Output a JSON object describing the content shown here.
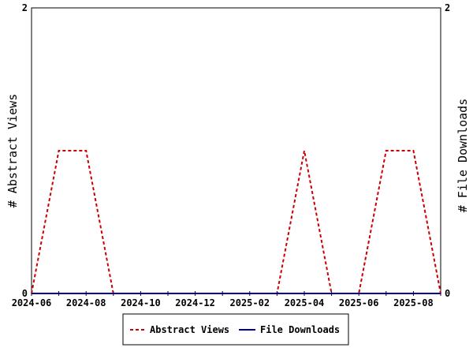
{
  "chart_data": {
    "type": "line",
    "x": [
      "2024-06",
      "2024-07",
      "2024-08",
      "2024-09",
      "2024-10",
      "2024-11",
      "2024-12",
      "2025-01",
      "2025-02",
      "2025-03",
      "2025-04",
      "2025-05",
      "2025-06",
      "2025-07",
      "2025-08",
      "2025-09"
    ],
    "x_tick_labels": [
      "2024-06",
      "2024-08",
      "2024-10",
      "2024-12",
      "2025-02",
      "2025-04",
      "2025-06",
      "2025-08"
    ],
    "series": [
      {
        "name": "Abstract Views",
        "axis": "left",
        "color": "#cc0000",
        "style": "dashed",
        "values": [
          0,
          1,
          1,
          0,
          0,
          0,
          0,
          0,
          0,
          0,
          1,
          0,
          0,
          1,
          1,
          0
        ]
      },
      {
        "name": "File Downloads",
        "axis": "right",
        "color": "#000099",
        "style": "solid",
        "values": [
          0,
          0,
          0,
          0,
          0,
          0,
          0,
          0,
          0,
          0,
          0,
          0,
          0,
          0,
          0,
          0
        ]
      }
    ],
    "ylabel_left": "# Abstract Views",
    "ylabel_right": "# File Downloads",
    "ylim_left": [
      0,
      2
    ],
    "ylim_right": [
      0,
      2
    ],
    "y_ticks_left": [
      "0",
      "2"
    ],
    "y_ticks_right": [
      "0",
      "2"
    ],
    "grid": false,
    "legend_position": "bottom"
  }
}
